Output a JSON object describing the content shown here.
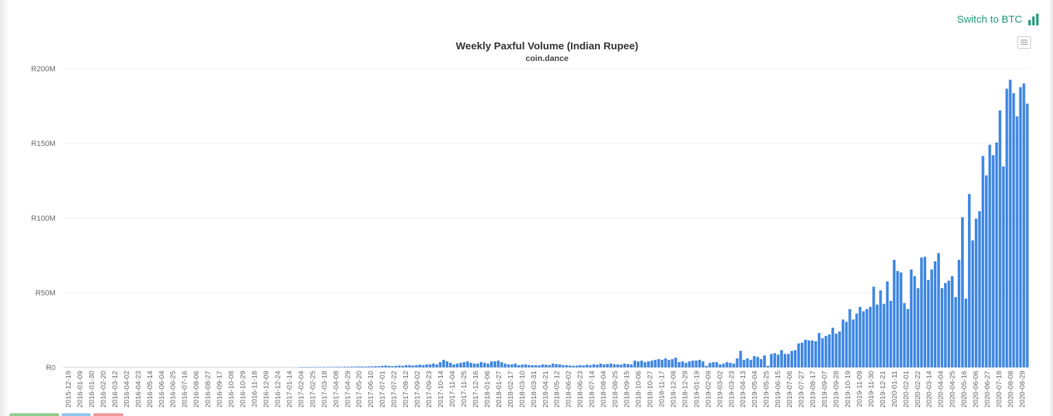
{
  "header": {
    "switch_label": "Switch to BTC",
    "switch_icon": "bar-chart-icon",
    "menu_icon": "hamburger-menu-icon"
  },
  "colors": {
    "bar": "#3d86e4",
    "accent": "#1e9a7c",
    "grid": "#ececec",
    "axis_text": "#666666"
  },
  "chart_data": {
    "type": "bar",
    "title": "Weekly Paxful Volume (Indian Rupee)",
    "subtitle": "coin.dance",
    "xlabel": "",
    "ylabel": "",
    "ylim": [
      0,
      200
    ],
    "y_unit": "M INR",
    "yticks": [
      "R0",
      "R50M",
      "R100M",
      "R150M",
      "R200M"
    ],
    "ytick_values": [
      0,
      50,
      100,
      150,
      200
    ],
    "grid": true,
    "legend": "none",
    "start_date": "2015-12-19",
    "xtick_labels": [
      "2015-12-19",
      "2016-01-09",
      "2016-01-30",
      "2016-02-20",
      "2016-03-12",
      "2016-04-02",
      "2016-04-23",
      "2016-05-14",
      "2016-06-04",
      "2016-06-25",
      "2016-07-16",
      "2016-08-06",
      "2016-08-27",
      "2016-09-17",
      "2016-10-08",
      "2016-10-29",
      "2016-11-18",
      "2016-12-09",
      "2016-12-24",
      "2017-01-14",
      "2017-02-04",
      "2017-02-25",
      "2017-03-18",
      "2017-04-08",
      "2017-04-29",
      "2017-05-20",
      "2017-06-10",
      "2017-07-01",
      "2017-07-22",
      "2017-08-12",
      "2017-09-02",
      "2017-09-23",
      "2017-10-14",
      "2017-11-04",
      "2017-11-25",
      "2017-12-16",
      "2018-01-06",
      "2018-01-27",
      "2018-02-17",
      "2018-03-10",
      "2018-03-31",
      "2018-04-21",
      "2018-05-12",
      "2018-06-02",
      "2018-06-23",
      "2018-07-14",
      "2018-08-04",
      "2018-08-25",
      "2018-09-15",
      "2018-10-06",
      "2018-10-27",
      "2018-11-17",
      "2018-12-08",
      "2018-12-29",
      "2019-01-19",
      "2019-02-09",
      "2019-03-02",
      "2019-03-23",
      "2019-04-13",
      "2019-05-04",
      "2019-05-25",
      "2019-06-15",
      "2019-07-06",
      "2019-07-27",
      "2019-08-17",
      "2019-09-07",
      "2019-09-28",
      "2019-10-19",
      "2019-11-09",
      "2019-11-30",
      "2019-12-21",
      "2020-01-11",
      "2020-02-01",
      "2020-02-22",
      "2020-03-14",
      "2020-04-04",
      "2020-04-25",
      "2020-05-16",
      "2020-06-06",
      "2020-06-27",
      "2020-07-18",
      "2020-08-08",
      "2020-08-29"
    ],
    "values": [
      0,
      0,
      0,
      0,
      0,
      0,
      0,
      0,
      0,
      0,
      0,
      0,
      0,
      0,
      0,
      0,
      0,
      0,
      0,
      0,
      0,
      0,
      0,
      0,
      0,
      0,
      0,
      0,
      0,
      0,
      0,
      0,
      0,
      0,
      0,
      0,
      0,
      0,
      0,
      0,
      0,
      0,
      0,
      0,
      0,
      0,
      0,
      0,
      0,
      0,
      0,
      0,
      0,
      0,
      0,
      0,
      0,
      0,
      0,
      0,
      0,
      0,
      0,
      0,
      0,
      0,
      0,
      0,
      0,
      0.1,
      0.1,
      0.1,
      0.1,
      0.2,
      0.2,
      0.2,
      0.3,
      0.2,
      0.3,
      0.3,
      0.4,
      0.3,
      0.4,
      0.4,
      0.5,
      0.5,
      0.6,
      0.6,
      0.5,
      0.6,
      0.7,
      0.8,
      0.7,
      1.0,
      1.2,
      1.0,
      0.8,
      1.0,
      1.2,
      1.0,
      1.5,
      1.5,
      1.2,
      1.5,
      1.8,
      1.5,
      2.0,
      2.0,
      2.5,
      2.0,
      3.5,
      5.0,
      4.0,
      3.0,
      2.0,
      2.5,
      3.0,
      3.5,
      4.0,
      3.0,
      2.5,
      2.5,
      3.5,
      3.0,
      2.5,
      4.0,
      4.0,
      4.5,
      3.5,
      2.5,
      2.0,
      2.0,
      2.5,
      1.5,
      1.8,
      2.0,
      1.5,
      1.5,
      1.5,
      1.3,
      2.0,
      1.8,
      1.5,
      2.5,
      2.2,
      2.0,
      1.5,
      1.5,
      1.2,
      1.0,
      1.2,
      1.5,
      1.3,
      1.8,
      1.5,
      2.0,
      1.8,
      2.5,
      2.0,
      2.2,
      2.5,
      2.0,
      2.0,
      1.8,
      2.5,
      2.2,
      2.0,
      4.5,
      4.0,
      4.5,
      3.5,
      4.0,
      4.5,
      5.0,
      5.5,
      5.0,
      6.0,
      5.0,
      5.5,
      6.5,
      3.5,
      4.0,
      3.0,
      4.0,
      4.5,
      4.5,
      5.0,
      4.0,
      1.0,
      3.0,
      3.5,
      3.5,
      2.0,
      2.5,
      3.5,
      3.0,
      2.5,
      6.0,
      11.0,
      5.0,
      6.0,
      5.0,
      7.5,
      7.0,
      5.5,
      8.0,
      1.0,
      9.0,
      9.5,
      8.5,
      11.5,
      9.0,
      9.0,
      11.0,
      11.5,
      16.0,
      16.5,
      18.5,
      18.0,
      18.0,
      17.5,
      23.0,
      19.5,
      21.0,
      22.0,
      26.5,
      22.5,
      24.0,
      32.0,
      30.5,
      39.0,
      32.0,
      36.0,
      40.5,
      37.5,
      39.0,
      40.5,
      54.0,
      42.0,
      51.5,
      42.5,
      57.5,
      44.5,
      72.0,
      64.5,
      63.5,
      43.0,
      39.0,
      65.5,
      61.0,
      53.0,
      73.5,
      74.0,
      58.5,
      65.5,
      71.0,
      76.5,
      53.0,
      56.5,
      58.0,
      61.0,
      47.0,
      72.0,
      100.5,
      46.0,
      116.0,
      85.0,
      99.5,
      104.5,
      141.5,
      128.5,
      149.0,
      142.0,
      150.5,
      172.0,
      134.5,
      186.5,
      192.5,
      183.5,
      168.0,
      187.5,
      190.0,
      176.5
    ]
  }
}
